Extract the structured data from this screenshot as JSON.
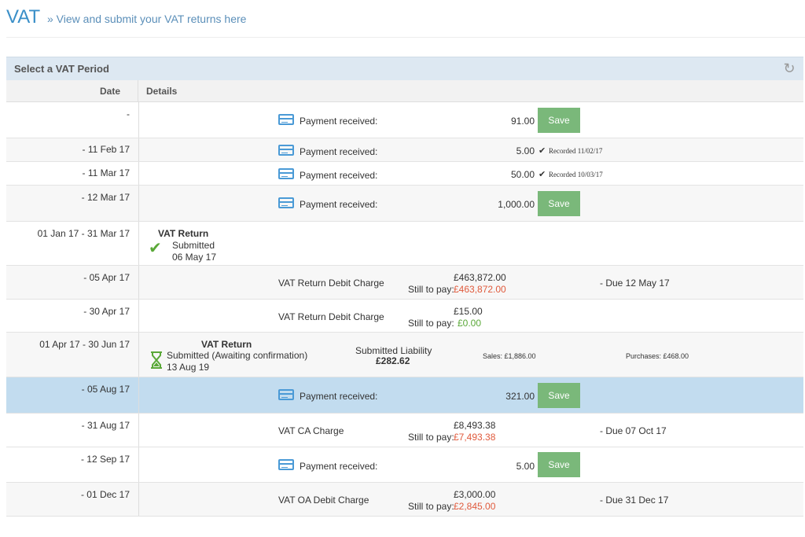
{
  "header": {
    "title": "VAT",
    "subtitle": "» View and submit your VAT returns here"
  },
  "panel": {
    "title": "Select a VAT Period",
    "col_date": "Date",
    "col_details": "Details"
  },
  "rows": [
    {
      "date": "-",
      "label": "Payment received:",
      "amount": "91.00",
      "save": "Save"
    },
    {
      "date": "- 11 Feb 17",
      "label": "Payment received:",
      "amount": "5.00",
      "recorded": "Recorded 11/02/17"
    },
    {
      "date": "- 11 Mar 17",
      "label": "Payment received:",
      "amount": "50.00",
      "recorded": "Recorded 10/03/17"
    },
    {
      "date": "- 12 Mar 17",
      "label": "Payment received:",
      "amount": "1,000.00",
      "save": "Save"
    },
    {
      "date": "01 Jan 17 - 31 Mar 17",
      "vat_title": "VAT Return",
      "status": "Submitted",
      "status_date": "06 May 17"
    },
    {
      "date": "- 05 Apr 17",
      "label": "VAT Return Debit Charge",
      "amount": "£463,872.00",
      "still_label": "Still to pay:",
      "still": "£463,872.00",
      "due": "- Due 12 May 17"
    },
    {
      "date": "- 30 Apr 17",
      "label": "VAT Return Debit Charge",
      "amount": "£15.00",
      "still_label": "Still to pay:",
      "still": "£0.00"
    },
    {
      "date": "01 Apr 17 - 30 Jun 17",
      "vat_title": "VAT Return",
      "status": "Submitted (Awaiting confirmation)",
      "status_date": "13 Aug 19",
      "liability_label": "Submitted Liability",
      "liability": "£282.62",
      "sales": "Sales: £1,886.00",
      "purchases": "Purchases: £468.00"
    },
    {
      "date": "- 05 Aug 17",
      "label": "Payment received:",
      "amount": "321.00",
      "save": "Save"
    },
    {
      "date": "- 31 Aug 17",
      "label": "VAT CA Charge",
      "amount": "£8,493.38",
      "still_label": "Still to pay:",
      "still": "£7,493.38",
      "due": "- Due 07 Oct 17"
    },
    {
      "date": "- 12 Sep 17",
      "label": "Payment received:",
      "amount": "5.00",
      "save": "Save"
    },
    {
      "date": "- 01 Dec 17",
      "label": "VAT OA Debit Charge",
      "amount": "£3,000.00",
      "still_label": "Still to pay:",
      "still": "£2,845.00",
      "due": "- Due 31 Dec 17"
    }
  ],
  "colors": {
    "accent": "#3a8fc8",
    "save_green": "#7ab87a",
    "owed_red": "#e05a3c",
    "paid_green": "#5aa838",
    "selected_row": "#c2dcef"
  }
}
